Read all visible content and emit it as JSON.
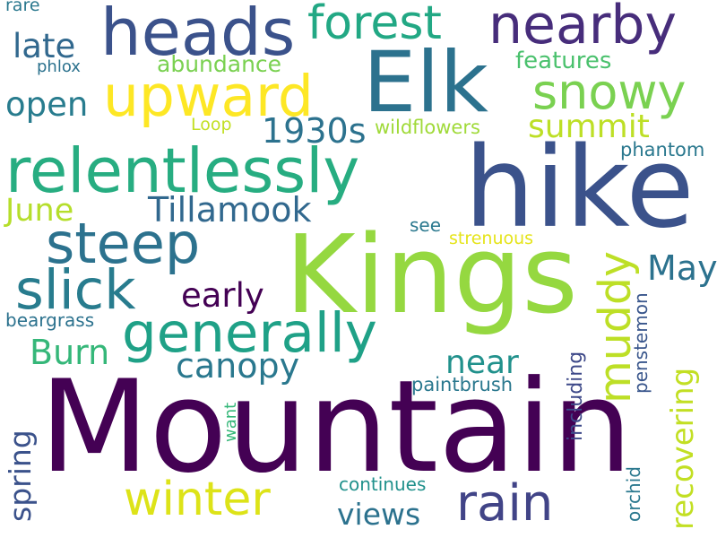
{
  "words": [
    {
      "text": "Mountain",
      "color": "#440154"
    },
    {
      "text": "Kings",
      "color": "#95d840"
    },
    {
      "text": "hike",
      "color": "#3b528b"
    },
    {
      "text": "Elk",
      "color": "#2c728e"
    },
    {
      "text": "heads",
      "color": "#3b528b"
    },
    {
      "text": "relentlessly",
      "color": "#27ad81"
    },
    {
      "text": "upward",
      "color": "#fde725"
    },
    {
      "text": "nearby",
      "color": "#472d7b"
    },
    {
      "text": "forest",
      "color": "#22a884"
    },
    {
      "text": "generally",
      "color": "#1fa187"
    },
    {
      "text": "steep",
      "color": "#2c728e"
    },
    {
      "text": "snowy",
      "color": "#7ad151"
    },
    {
      "text": "slick",
      "color": "#287c8e"
    },
    {
      "text": "winter",
      "color": "#dde318"
    },
    {
      "text": "rain",
      "color": "#414487"
    },
    {
      "text": "muddy",
      "color": "#bddf26"
    },
    {
      "text": "early",
      "color": "#440154"
    },
    {
      "text": "1930s",
      "color": "#2c728e"
    },
    {
      "text": "Tillamook",
      "color": "#31688e"
    },
    {
      "text": "summit",
      "color": "#bddf26"
    },
    {
      "text": "late",
      "color": "#31688e"
    },
    {
      "text": "open",
      "color": "#287c8e"
    },
    {
      "text": "June",
      "color": "#b5de2b"
    },
    {
      "text": "May",
      "color": "#2c728e"
    },
    {
      "text": "Burn",
      "color": "#35b779"
    },
    {
      "text": "canopy",
      "color": "#2a788e"
    },
    {
      "text": "near",
      "color": "#21918c"
    },
    {
      "text": "views",
      "color": "#2c728e"
    },
    {
      "text": "spring",
      "color": "#3b528b"
    },
    {
      "text": "recovering",
      "color": "#c2df23"
    },
    {
      "text": "abundance",
      "color": "#7ad151"
    },
    {
      "text": "features",
      "color": "#4ac16d"
    },
    {
      "text": "wildflowers",
      "color": "#a0da39"
    },
    {
      "text": "phantom",
      "color": "#2a788e"
    },
    {
      "text": "strenuous",
      "color": "#e5e419"
    },
    {
      "text": "see",
      "color": "#2a788e"
    },
    {
      "text": "beargrass",
      "color": "#2c728e"
    },
    {
      "text": "paintbrush",
      "color": "#2a788e"
    },
    {
      "text": "including",
      "color": "#3e4989"
    },
    {
      "text": "penstemon",
      "color": "#39568c"
    },
    {
      "text": "orchid",
      "color": "#2a788e"
    },
    {
      "text": "continues",
      "color": "#21918c"
    },
    {
      "text": "want",
      "color": "#35b779"
    },
    {
      "text": "Loop",
      "color": "#c2df23"
    },
    {
      "text": "phlox",
      "color": "#2c728e"
    },
    {
      "text": "rare",
      "color": "#2a788e"
    }
  ]
}
